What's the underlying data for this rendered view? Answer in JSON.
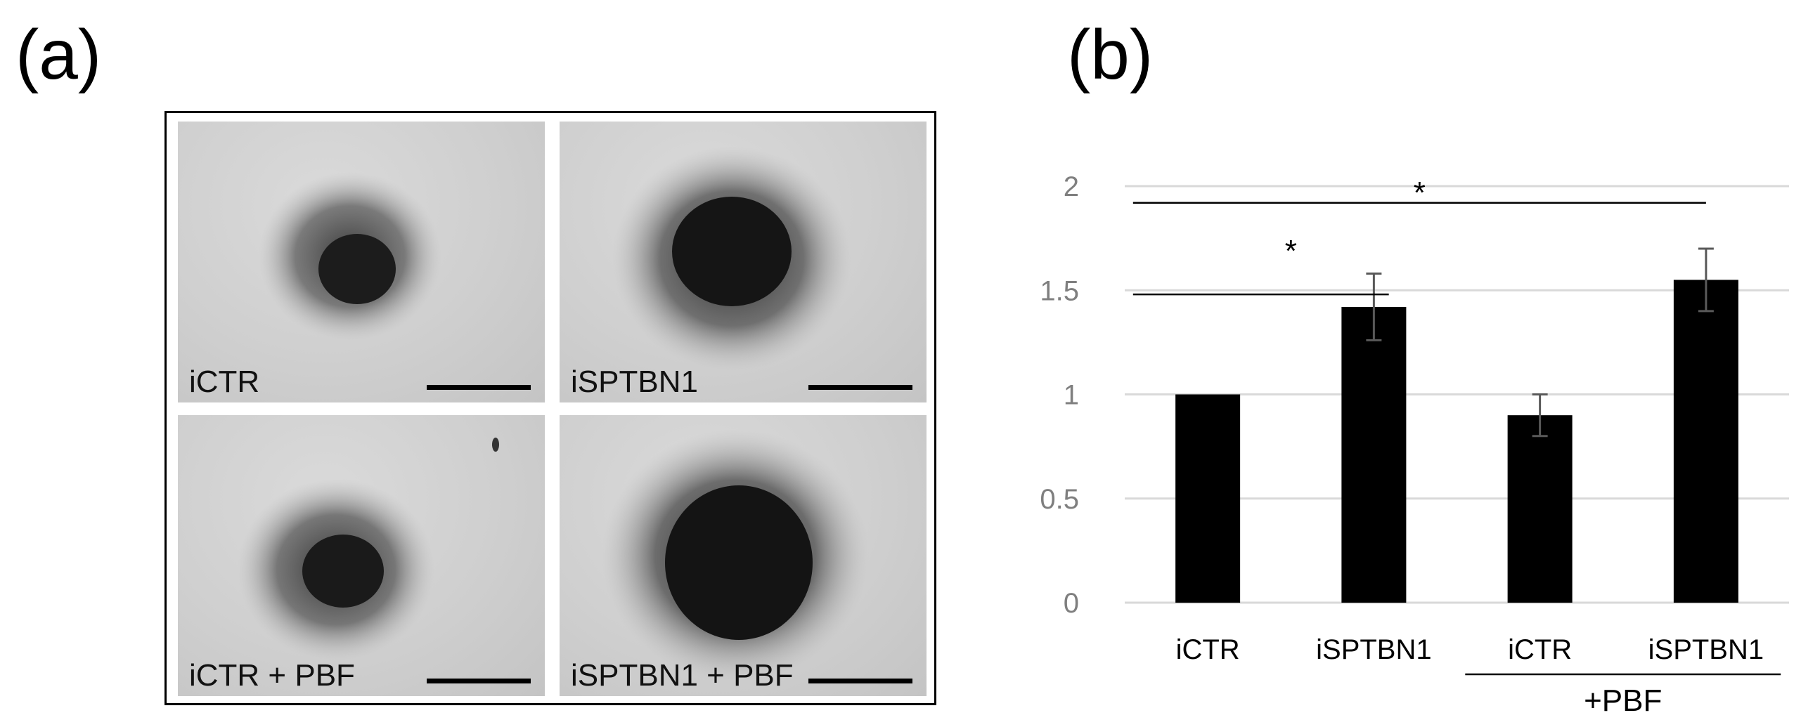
{
  "panel_a": {
    "label": "(a)",
    "images": [
      {
        "label": "iCTR"
      },
      {
        "label": "iSPTBN1"
      },
      {
        "label": "iCTR + PBF"
      },
      {
        "label": "iSPTBN1 + PBF"
      }
    ]
  },
  "panel_b": {
    "label": "(b)"
  },
  "chart_data": {
    "type": "bar",
    "categories": [
      "iCTR",
      "iSPTBN1",
      "iCTR",
      "iSPTBN1"
    ],
    "series": [
      {
        "values": [
          1.0,
          1.42,
          0.9,
          1.55
        ],
        "errors": [
          0,
          0.16,
          0.1,
          0.15
        ],
        "color": "#000000"
      }
    ],
    "group_labels": [
      {
        "label": "+PBF",
        "categories": [
          2,
          3
        ]
      }
    ],
    "significance": [
      {
        "label": "*",
        "from": 0,
        "to": 1
      },
      {
        "label": "*",
        "from": 0,
        "to": 3
      }
    ],
    "yticks": [
      "0",
      "0.5",
      "1",
      "1.5",
      "2"
    ],
    "ylim": [
      0,
      2
    ],
    "grid": true,
    "title": "",
    "xlabel": "",
    "ylabel": ""
  }
}
